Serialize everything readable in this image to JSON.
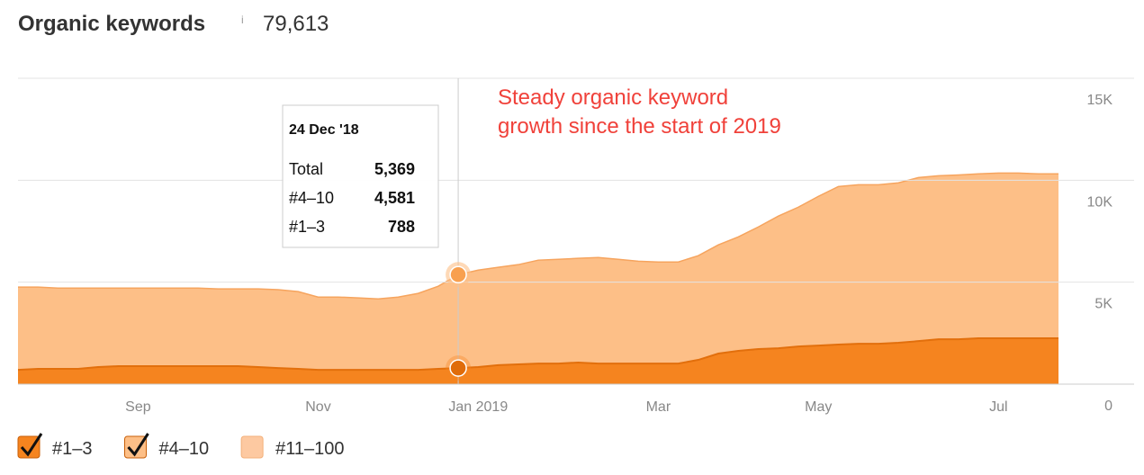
{
  "chart_data": {
    "type": "stacked-area",
    "title": "Organic keywords",
    "info": "i",
    "total": "79,613",
    "annotation": [
      "Steady organic keyword",
      "growth since the start of 2019"
    ],
    "categories": [
      null,
      null,
      null,
      null,
      null,
      null,
      "Sep",
      null,
      null,
      null,
      null,
      null,
      null,
      null,
      null,
      "Nov",
      null,
      null,
      null,
      null,
      null,
      null,
      null,
      "Jan 2019",
      null,
      null,
      null,
      null,
      null,
      null,
      null,
      null,
      "Mar",
      null,
      null,
      null,
      null,
      null,
      null,
      null,
      "May",
      null,
      null,
      null,
      null,
      null,
      null,
      null,
      null,
      "Jul",
      null,
      null,
      null
    ],
    "series": [
      {
        "name": "#1–3",
        "color": "#f5841f",
        "values": [
          700,
          750,
          750,
          750,
          840,
          880,
          880,
          880,
          880,
          880,
          880,
          880,
          840,
          790,
          750,
          700,
          700,
          700,
          700,
          700,
          700,
          750,
          788,
          840,
          930,
          970,
          1010,
          1010,
          1060,
          1010,
          1010,
          1010,
          1010,
          1010,
          1190,
          1500,
          1630,
          1720,
          1760,
          1850,
          1890,
          1940,
          1980,
          1980,
          2030,
          2110,
          2200,
          2200,
          2250,
          2250,
          2250,
          2250,
          2250
        ]
      },
      {
        "name": "#4–10",
        "color": "#fdbf87",
        "values": [
          4060,
          4010,
          3960,
          3960,
          3870,
          3830,
          3830,
          3830,
          3830,
          3830,
          3790,
          3790,
          3830,
          3840,
          3790,
          3570,
          3570,
          3530,
          3480,
          3570,
          3750,
          4050,
          4581,
          4750,
          4800,
          4890,
          5070,
          5110,
          5110,
          5200,
          5110,
          5020,
          4980,
          4980,
          5110,
          5330,
          5590,
          5990,
          6480,
          6830,
          7320,
          7750,
          7800,
          7800,
          7840,
          8020,
          8020,
          8060,
          8060,
          8100,
          8100,
          8060,
          8060
        ]
      }
    ],
    "hidden_series": [
      {
        "name": "#11–100",
        "color": "#fdc9a1"
      }
    ],
    "ylim": [
      0,
      15000
    ],
    "yticks": [
      0,
      {
        "value": 5000,
        "label": "5K"
      },
      {
        "value": 10000,
        "label": "10K"
      },
      {
        "value": 15000,
        "label": "15K"
      }
    ],
    "grid": true,
    "tooltip": {
      "date": "24 Dec '18",
      "total_label": "Total",
      "values": [
        5369,
        4581,
        788
      ],
      "value_labels": [
        "5,369",
        "4,581",
        "788"
      ]
    }
  }
}
